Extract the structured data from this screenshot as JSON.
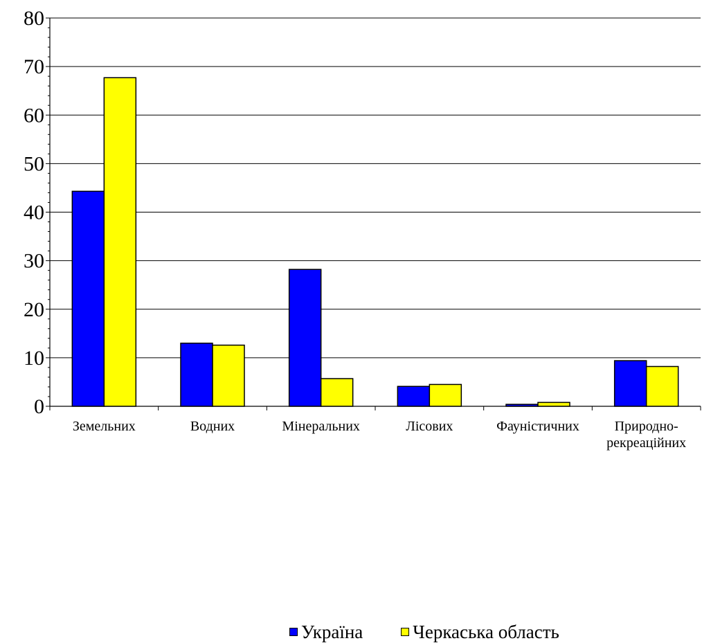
{
  "chart_data": {
    "type": "bar",
    "categories": [
      "Земельних",
      "Водних",
      "Мінеральних",
      "Лісових",
      "Фауністичних",
      "Природно-\nрекреаційних"
    ],
    "series": [
      {
        "name": "Україна",
        "color": "#0000FF",
        "values": [
          44.3,
          13.0,
          28.2,
          4.1,
          0.4,
          9.4
        ]
      },
      {
        "name": "Черкаська область",
        "color": "#FFFF00",
        "values": [
          67.7,
          12.6,
          5.7,
          4.5,
          0.8,
          8.2
        ]
      }
    ],
    "ylim": [
      0,
      80
    ],
    "yticks": [
      0,
      10,
      20,
      30,
      40,
      50,
      60,
      70,
      80
    ],
    "grid": true,
    "legend_position": "bottom",
    "title": "",
    "xlabel": "",
    "ylabel": ""
  }
}
